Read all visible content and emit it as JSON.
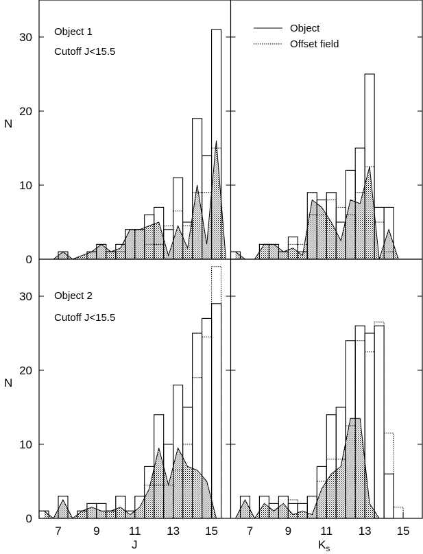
{
  "figure": {
    "y_axis_label": "N",
    "legend": {
      "object_label": "Object",
      "offset_label": "Offset field"
    }
  },
  "chart_data": [
    {
      "type": "bar",
      "panel": "top-left",
      "annotation_lines": [
        "Object 1",
        "Cutoff J<15.5"
      ],
      "xlabel": "",
      "ylabel": "N",
      "xlim": [
        6.0,
        16.0
      ],
      "ylim": [
        0,
        35
      ],
      "bin_width": 0.5,
      "xticks": [],
      "yticks": [
        0,
        10,
        20,
        30
      ],
      "series": [
        {
          "name": "Object",
          "style": "solid-bars",
          "x": [
            7.0,
            8.5,
            9.0,
            9.5,
            10.0,
            10.5,
            11.0,
            11.5,
            12.0,
            12.5,
            13.0,
            13.5,
            14.0,
            14.5,
            15.0
          ],
          "values": [
            1,
            1,
            2,
            1,
            2,
            4,
            4,
            6,
            7,
            4,
            11,
            5,
            19,
            14,
            31
          ]
        },
        {
          "name": "Offset field",
          "style": "dotted-bars",
          "x": [
            7.0,
            8.5,
            9.0,
            9.5,
            10.0,
            10.5,
            11.0,
            11.5,
            12.0,
            12.5,
            13.0,
            13.5,
            14.0,
            14.5,
            15.0
          ],
          "values": [
            1,
            1,
            2,
            1,
            1,
            4,
            4,
            2,
            2,
            4.5,
            6.5,
            4.5,
            9,
            9,
            15
          ]
        },
        {
          "name": "",
          "style": "filled-curve",
          "x": [
            6.75,
            7.25,
            7.75,
            8.75,
            9.25,
            9.75,
            10.25,
            10.75,
            11.25,
            11.75,
            12.25,
            12.75,
            13.25,
            13.75,
            14.25,
            14.75,
            15.25,
            15.75
          ],
          "values": [
            0,
            1,
            0,
            1,
            2,
            1,
            1.5,
            4,
            4,
            4.5,
            5,
            0.5,
            4.5,
            1.5,
            10,
            2,
            16,
            0
          ]
        }
      ]
    },
    {
      "type": "bar",
      "panel": "top-right",
      "xlabel": "",
      "ylabel": "",
      "xlim": [
        6.0,
        16.0
      ],
      "ylim": [
        0,
        35
      ],
      "bin_width": 0.5,
      "xticks": [],
      "yticks": [],
      "series": [
        {
          "name": "Object",
          "style": "solid-bars",
          "x": [
            6.0,
            7.5,
            8.0,
            8.5,
            9.0,
            9.5,
            10.0,
            10.5,
            11.0,
            11.5,
            12.0,
            12.5,
            13.0,
            13.5,
            14.0
          ],
          "values": [
            1,
            2,
            2,
            1,
            3,
            1,
            9,
            8,
            9,
            5,
            12,
            15,
            25,
            7,
            7
          ]
        },
        {
          "name": "Offset field",
          "style": "dotted-bars",
          "x": [
            6.0,
            7.5,
            8.0,
            8.5,
            9.0,
            9.5,
            10.0,
            10.5,
            11.0,
            11.5,
            12.0,
            12.5,
            13.0,
            13.5,
            14.0
          ],
          "values": [
            1,
            2,
            2,
            1,
            2,
            2,
            6,
            6,
            8,
            7,
            6,
            9,
            12.5,
            5,
            1
          ]
        },
        {
          "name": "",
          "style": "filled-curve",
          "x": [
            6.25,
            6.75,
            7.25,
            7.75,
            8.25,
            8.75,
            9.25,
            9.75,
            10.25,
            10.75,
            11.25,
            11.75,
            12.25,
            12.75,
            13.25,
            13.75,
            14.25,
            14.75
          ],
          "values": [
            1,
            0,
            0,
            2,
            2,
            1,
            1.5,
            0.5,
            8,
            7,
            5,
            2.5,
            8,
            7.5,
            12.5,
            0,
            4,
            0
          ]
        }
      ]
    },
    {
      "type": "bar",
      "panel": "bottom-left",
      "annotation_lines": [
        "Object 2",
        "Cutoff J<15.5"
      ],
      "xlabel": "J",
      "ylabel": "N",
      "xlim": [
        6.0,
        16.0
      ],
      "ylim": [
        0,
        35
      ],
      "bin_width": 0.5,
      "xticks": [
        7,
        9,
        11,
        13,
        15
      ],
      "yticks": [
        0,
        10,
        20,
        30
      ],
      "series": [
        {
          "name": "Object",
          "style": "solid-bars",
          "x": [
            6.0,
            7.0,
            8.0,
            8.5,
            9.0,
            9.5,
            10.0,
            10.5,
            11.0,
            11.5,
            12.0,
            12.5,
            13.0,
            13.5,
            14.0,
            14.5,
            15.0
          ],
          "values": [
            1,
            3,
            1,
            2,
            2,
            1,
            3,
            1,
            3,
            7,
            14,
            10,
            18,
            15,
            25,
            27,
            29
          ]
        },
        {
          "name": "Offset field",
          "style": "dotted-bars",
          "x": [
            6.0,
            7.0,
            8.0,
            8.5,
            9.0,
            9.5,
            10.0,
            10.5,
            11.0,
            11.5,
            12.0,
            12.5,
            13.0,
            13.5,
            14.0,
            14.5,
            15.0
          ],
          "values": [
            1,
            3,
            1,
            2,
            2,
            1,
            3,
            1,
            3,
            4.5,
            4.5,
            4.5,
            6.5,
            10,
            19,
            24.5,
            34
          ]
        },
        {
          "name": "",
          "style": "filled-curve",
          "x": [
            6.25,
            6.75,
            7.25,
            7.75,
            8.25,
            8.75,
            9.25,
            9.75,
            10.25,
            10.75,
            11.25,
            11.75,
            12.25,
            12.75,
            13.25,
            13.75,
            14.25,
            14.75,
            15.25
          ],
          "values": [
            1,
            0,
            2.5,
            0,
            1,
            1.5,
            1,
            1,
            1.5,
            0.5,
            1.5,
            4,
            9.5,
            4.5,
            9.5,
            7,
            6.5,
            5,
            0
          ]
        }
      ]
    },
    {
      "type": "bar",
      "panel": "bottom-right",
      "xlabel": "Ks",
      "ylabel": "",
      "xlim": [
        6.0,
        16.0
      ],
      "ylim": [
        0,
        35
      ],
      "bin_width": 0.5,
      "xticks": [
        7,
        9,
        11,
        13,
        15
      ],
      "yticks": [],
      "series": [
        {
          "name": "Object",
          "style": "solid-bars",
          "x": [
            6.5,
            7.5,
            8.0,
            8.5,
            9.0,
            9.5,
            10.0,
            10.5,
            11.0,
            11.5,
            12.0,
            12.5,
            13.0,
            13.5,
            14.0
          ],
          "values": [
            3,
            3,
            2,
            3,
            2,
            2,
            3,
            7,
            14,
            15,
            24,
            26,
            25,
            26,
            6
          ]
        },
        {
          "name": "Offset field",
          "style": "dotted-bars",
          "x": [
            6.5,
            7.5,
            8.0,
            8.5,
            9.0,
            9.5,
            10.0,
            10.5,
            11.0,
            11.5,
            12.0,
            12.5,
            13.0,
            13.5,
            14.0,
            14.5
          ],
          "values": [
            3,
            3,
            2,
            3,
            2.5,
            2,
            3,
            5,
            8,
            8,
            12.5,
            24,
            22.5,
            26.5,
            11.5,
            1.5
          ]
        },
        {
          "name": "",
          "style": "filled-curve",
          "x": [
            6.25,
            6.75,
            7.25,
            7.75,
            8.25,
            8.75,
            9.25,
            9.75,
            10.25,
            10.75,
            11.25,
            11.75,
            12.25,
            12.75,
            13.25,
            13.75
          ],
          "values": [
            0,
            2.5,
            0,
            2,
            1,
            2,
            0.5,
            1,
            0.5,
            4,
            6,
            7,
            13.5,
            13.5,
            2,
            0
          ]
        }
      ]
    }
  ]
}
